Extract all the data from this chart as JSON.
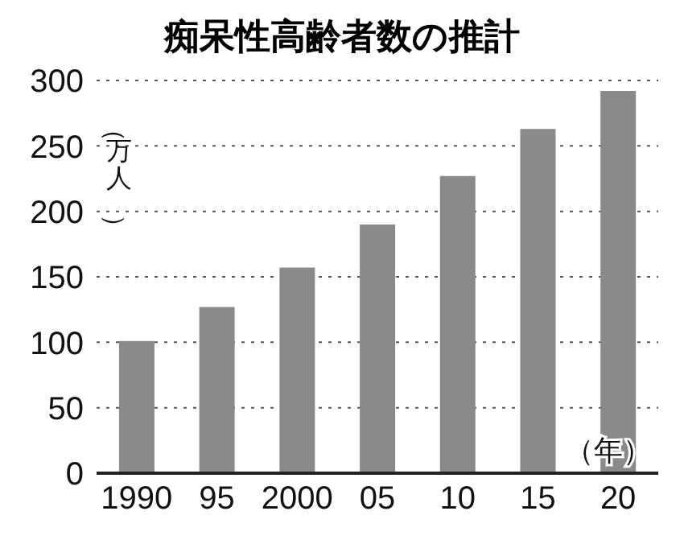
{
  "chart_data": {
    "type": "bar",
    "title": "痴呆性高齢者数の推計",
    "ylabel": "（万人）",
    "xlabel": "（年）",
    "categories": [
      "1990",
      "95",
      "2000",
      "05",
      "10",
      "15",
      "20"
    ],
    "values": [
      101,
      127,
      157,
      190,
      227,
      263,
      292
    ],
    "color": "#8a8a8a",
    "ylim": [
      0,
      300
    ],
    "yticks": [
      0,
      50,
      100,
      150,
      200,
      250,
      300
    ],
    "grid": "y"
  }
}
